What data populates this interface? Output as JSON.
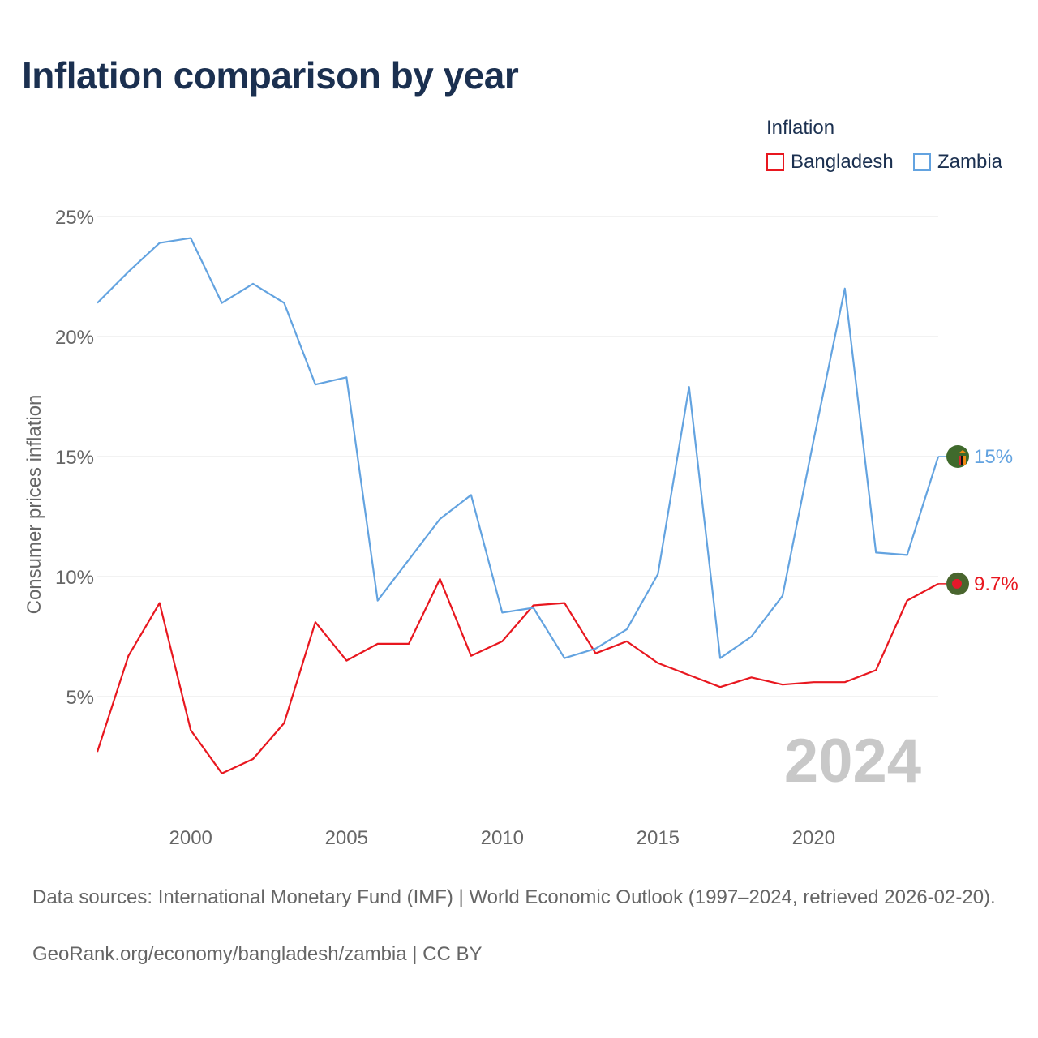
{
  "title": "Inflation comparison by year",
  "legend": {
    "title": "Inflation",
    "items": [
      {
        "label": "Bangladesh",
        "color": "#e8171f"
      },
      {
        "label": "Zambia",
        "color": "#63a3e0"
      }
    ]
  },
  "chart_data": {
    "type": "line",
    "title": "Inflation comparison by year",
    "xlabel": "",
    "ylabel": "Consumer prices inflation",
    "x": [
      1997,
      1998,
      1999,
      2000,
      2001,
      2002,
      2003,
      2004,
      2005,
      2006,
      2007,
      2008,
      2009,
      2010,
      2011,
      2012,
      2013,
      2014,
      2015,
      2016,
      2017,
      2018,
      2019,
      2020,
      2021,
      2022,
      2023,
      2024
    ],
    "xlim": [
      1997,
      2024
    ],
    "ylim": [
      0,
      25
    ],
    "y_ticks": [
      5,
      10,
      15,
      20,
      25
    ],
    "y_tick_labels": [
      "5%",
      "10%",
      "15%",
      "20%",
      "25%"
    ],
    "x_ticks": [
      2000,
      2005,
      2010,
      2015,
      2020
    ],
    "x_tick_labels": [
      "2000",
      "2005",
      "2010",
      "2015",
      "2020"
    ],
    "grid": true,
    "legend_position": "top-right",
    "watermark_year": "2024",
    "series": [
      {
        "name": "Bangladesh",
        "color": "#e8171f",
        "values": [
          2.7,
          6.7,
          8.9,
          3.6,
          1.8,
          2.4,
          3.9,
          8.1,
          6.5,
          7.2,
          7.2,
          9.9,
          6.7,
          7.3,
          8.8,
          8.9,
          6.8,
          7.3,
          6.4,
          5.9,
          5.4,
          5.8,
          5.5,
          5.6,
          5.6,
          6.1,
          9.0,
          9.7
        ],
        "end_label": "9.7%"
      },
      {
        "name": "Zambia",
        "color": "#63a3e0",
        "values": [
          21.4,
          22.7,
          23.9,
          24.1,
          21.4,
          22.2,
          21.4,
          18.0,
          18.3,
          9.0,
          10.7,
          12.4,
          13.4,
          8.5,
          8.7,
          6.6,
          7.0,
          7.8,
          10.1,
          17.9,
          6.6,
          7.5,
          9.2,
          15.7,
          22.0,
          11.0,
          10.9,
          15.0
        ],
        "end_label": "15%"
      }
    ]
  },
  "footer": {
    "sources": "Data sources: International Monetary Fund (IMF) | World Economic Outlook (1997–2024, retrieved 2026-02-20).",
    "credit": "GeoRank.org/economy/bangladesh/zambia | CC BY"
  }
}
